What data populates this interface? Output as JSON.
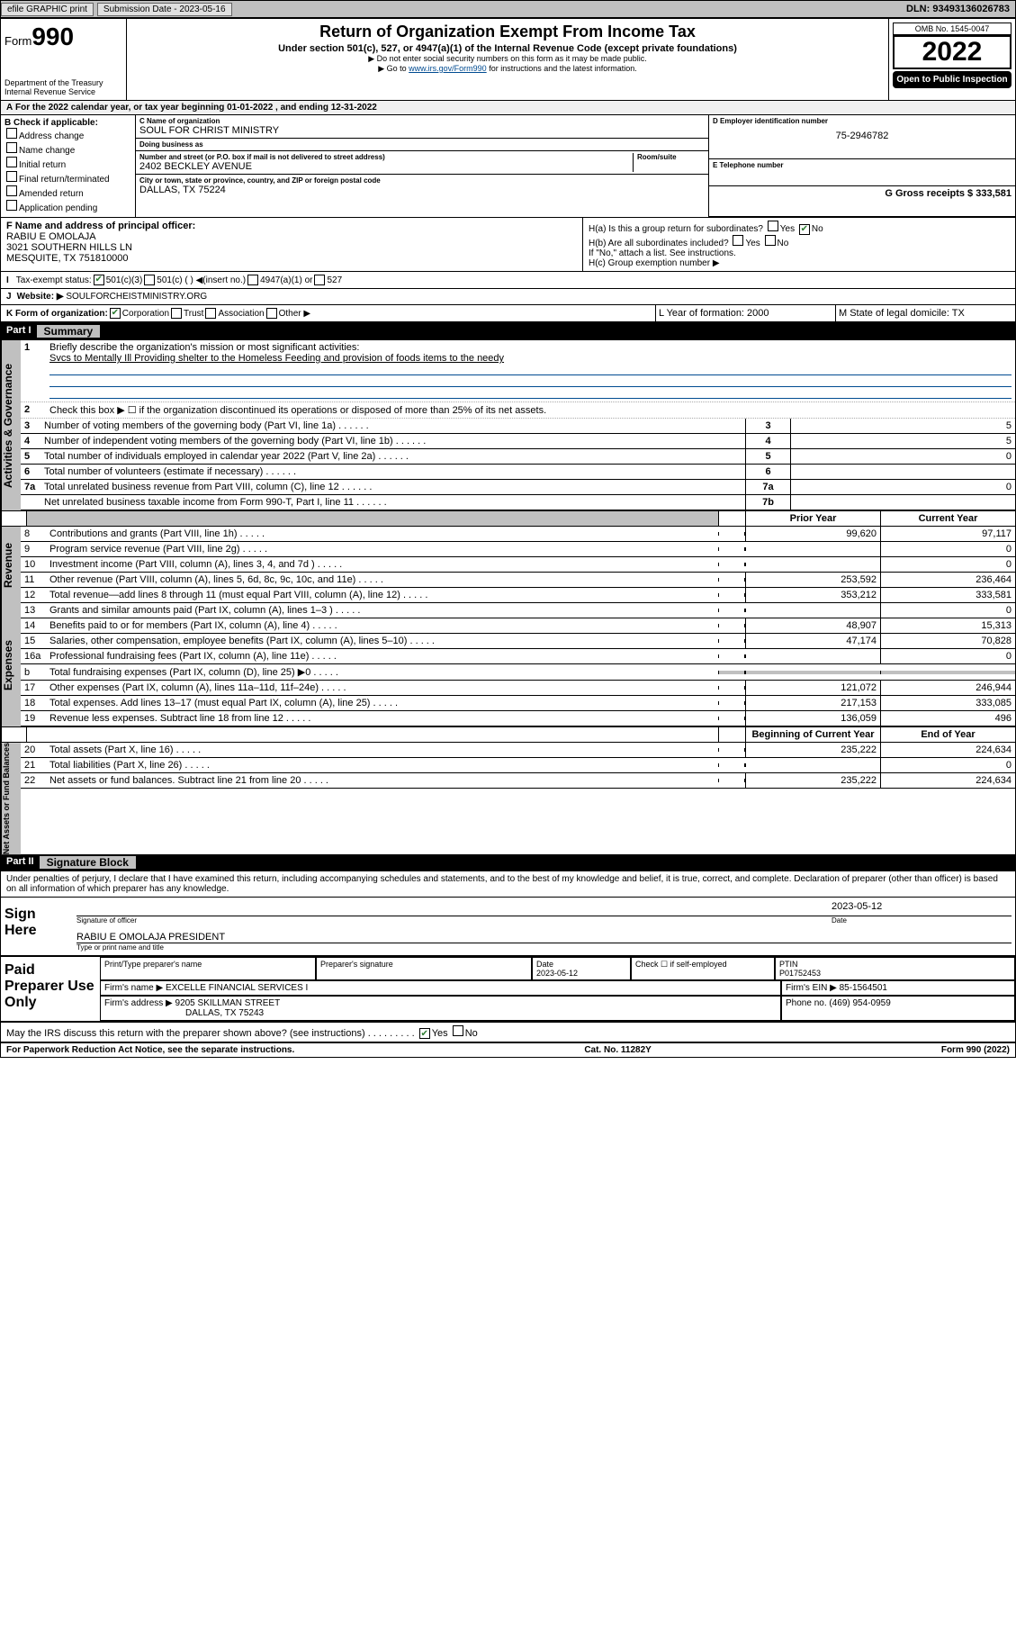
{
  "topbar": {
    "efile": "efile GRAPHIC print",
    "submission": "Submission Date - 2023-05-16",
    "dln_label": "DLN: 93493136026783"
  },
  "hdr": {
    "form_prefix": "Form",
    "form_no": "990",
    "main_title": "Return of Organization Exempt From Income Tax",
    "subtitle": "Under section 501(c), 527, or 4947(a)(1) of the Internal Revenue Code (except private foundations)",
    "note1": "▶ Do not enter social security numbers on this form as it may be made public.",
    "note2_pre": "▶ Go to ",
    "note2_link": "www.irs.gov/Form990",
    "note2_post": " for instructions and the latest information.",
    "dept": "Department of the Treasury",
    "irs": "Internal Revenue Service",
    "omb": "OMB No. 1545-0047",
    "year": "2022",
    "openpub": "Open to Public Inspection"
  },
  "periodA": "For the 2022 calendar year, or tax year beginning 01-01-2022   , and ending 12-31-2022",
  "B": {
    "label": "B Check if applicable:",
    "items": [
      "Address change",
      "Name change",
      "Initial return",
      "Final return/terminated",
      "Amended return",
      "Application pending"
    ]
  },
  "C": {
    "namelabel": "C Name of organization",
    "name": "SOUL FOR CHRIST MINISTRY",
    "dba": "Doing business as",
    "streetlabel": "Number and street (or P.O. box if mail is not delivered to street address)",
    "room": "Room/suite",
    "street": "2402 BECKLEY AVENUE",
    "citylabel": "City or town, state or province, country, and ZIP or foreign postal code",
    "city": "DALLAS, TX  75224"
  },
  "D": {
    "label": "D Employer identification number",
    "ein": "75-2946782"
  },
  "E": {
    "label": "E Telephone number"
  },
  "G": {
    "label": "G Gross receipts $ 333,581"
  },
  "F": {
    "label": "F  Name and address of principal officer:",
    "name": "RABIU E OMOLAJA",
    "addr1": "3021 SOUTHERN HILLS LN",
    "addr2": "MESQUITE, TX  751810000"
  },
  "H": {
    "a": "H(a)  Is this a group return for subordinates?",
    "yes": "Yes",
    "no": "No",
    "b": "H(b)  Are all subordinates included?",
    "bnote": "If \"No,\" attach a list. See instructions.",
    "c": "H(c)  Group exemption number ▶"
  },
  "I": {
    "label": "Tax-exempt status:",
    "a": "501(c)(3)",
    "b": "501(c) (  ) ◀(insert no.)",
    "c": "4947(a)(1) or",
    "d": "527"
  },
  "J": {
    "label": "J",
    "text": "Website: ▶",
    "val": "SOULFORCHEISTMINISTRY.ORG"
  },
  "K": {
    "label": "K Form of organization:",
    "a": "Corporation",
    "b": "Trust",
    "c": "Association",
    "d": "Other ▶"
  },
  "L": {
    "label": "L Year of formation: 2000"
  },
  "M": {
    "label": "M State of legal domicile: TX"
  },
  "part1": {
    "label": "Part I",
    "title": "Summary"
  },
  "summary": {
    "l1a": "Briefly describe the organization's mission or most significant activities:",
    "l1b": "Svcs to Mentally Ill Providing shelter to the Homeless Feeding and provision of foods items to the needy",
    "l2": "Check this box ▶ ☐  if the organization discontinued its operations or disposed of more than 25% of its net assets.",
    "rows": [
      {
        "n": "3",
        "t": "Number of voting members of the governing body (Part VI, line 1a)",
        "box": "3",
        "v": "5"
      },
      {
        "n": "4",
        "t": "Number of independent voting members of the governing body (Part VI, line 1b)",
        "box": "4",
        "v": "5"
      },
      {
        "n": "5",
        "t": "Total number of individuals employed in calendar year 2022 (Part V, line 2a)",
        "box": "5",
        "v": "0"
      },
      {
        "n": "6",
        "t": "Total number of volunteers (estimate if necessary)",
        "box": "6",
        "v": ""
      },
      {
        "n": "7a",
        "t": "Total unrelated business revenue from Part VIII, column (C), line 12",
        "box": "7a",
        "v": "0"
      },
      {
        "n": "",
        "t": "Net unrelated business taxable income from Form 990-T, Part I, line 11",
        "box": "7b",
        "v": ""
      }
    ],
    "prior": "Prior Year",
    "current": "Current Year"
  },
  "revenue": [
    {
      "n": "8",
      "t": "Contributions and grants (Part VIII, line 1h)",
      "p": "99,620",
      "c": "97,117"
    },
    {
      "n": "9",
      "t": "Program service revenue (Part VIII, line 2g)",
      "p": "",
      "c": "0"
    },
    {
      "n": "10",
      "t": "Investment income (Part VIII, column (A), lines 3, 4, and 7d )",
      "p": "",
      "c": "0"
    },
    {
      "n": "11",
      "t": "Other revenue (Part VIII, column (A), lines 5, 6d, 8c, 9c, 10c, and 11e)",
      "p": "253,592",
      "c": "236,464"
    },
    {
      "n": "12",
      "t": "Total revenue—add lines 8 through 11 (must equal Part VIII, column (A), line 12)",
      "p": "353,212",
      "c": "333,581"
    }
  ],
  "expenses": [
    {
      "n": "13",
      "t": "Grants and similar amounts paid (Part IX, column (A), lines 1–3 )",
      "p": "",
      "c": "0"
    },
    {
      "n": "14",
      "t": "Benefits paid to or for members (Part IX, column (A), line 4)",
      "p": "48,907",
      "c": "15,313"
    },
    {
      "n": "15",
      "t": "Salaries, other compensation, employee benefits (Part IX, column (A), lines 5–10)",
      "p": "47,174",
      "c": "70,828"
    },
    {
      "n": "16a",
      "t": "Professional fundraising fees (Part IX, column (A), line 11e)",
      "p": "",
      "c": "0"
    },
    {
      "n": "b",
      "t": "Total fundraising expenses (Part IX, column (D), line 25) ▶0",
      "p": "—",
      "c": "—"
    },
    {
      "n": "17",
      "t": "Other expenses (Part IX, column (A), lines 11a–11d, 11f–24e)",
      "p": "121,072",
      "c": "246,944"
    },
    {
      "n": "18",
      "t": "Total expenses. Add lines 13–17 (must equal Part IX, column (A), line 25)",
      "p": "217,153",
      "c": "333,085"
    },
    {
      "n": "19",
      "t": "Revenue less expenses. Subtract line 18 from line 12",
      "p": "136,059",
      "c": "496"
    }
  ],
  "netassets_hdr": {
    "p": "Beginning of Current Year",
    "c": "End of Year"
  },
  "netassets": [
    {
      "n": "20",
      "t": "Total assets (Part X, line 16)",
      "p": "235,222",
      "c": "224,634"
    },
    {
      "n": "21",
      "t": "Total liabilities (Part X, line 26)",
      "p": "",
      "c": "0"
    },
    {
      "n": "22",
      "t": "Net assets or fund balances. Subtract line 21 from line 20",
      "p": "235,222",
      "c": "224,634"
    }
  ],
  "part2": {
    "label": "Part II",
    "title": "Signature Block"
  },
  "penalty": "Under penalties of perjury, I declare that I have examined this return, including accompanying schedules and statements, and to the best of my knowledge and belief, it is true, correct, and complete. Declaration of preparer (other than officer) is based on all information of which preparer has any knowledge.",
  "sign": {
    "here": "Sign Here",
    "sigoff": "Signature of officer",
    "date": "Date",
    "dateval": "2023-05-12",
    "typed": "RABIU E OMOLAJA PRESIDENT",
    "typedlabel": "Type or print name and title"
  },
  "paid": {
    "label": "Paid Preparer Use Only",
    "h1": "Print/Type preparer's name",
    "h2": "Preparer's signature",
    "h3": "Date",
    "h3v": "2023-05-12",
    "h4a": "Check ☐ if self-employed",
    "h5a": "PTIN",
    "h5b": "P01752453",
    "firm": "Firm's name    ▶ EXCELLE FINANCIAL SERVICES I",
    "firmein": "Firm's EIN ▶ 85-1564501",
    "addr": "Firm's address ▶ 9205 SKILLMAN STREET",
    "addr2": "DALLAS, TX  75243",
    "phone": "Phone no. (469) 954-0959"
  },
  "may": "May the IRS discuss this return with the preparer shown above? (see instructions)",
  "mayyes": "Yes",
  "mayno": "No",
  "footer": {
    "a": "For Paperwork Reduction Act Notice, see the separate instructions.",
    "b": "Cat. No. 11282Y",
    "c": "Form 990 (2022)"
  },
  "sidebars": {
    "gov": "Activities & Governance",
    "rev": "Revenue",
    "exp": "Expenses",
    "net": "Net Assets or Fund Balances"
  }
}
